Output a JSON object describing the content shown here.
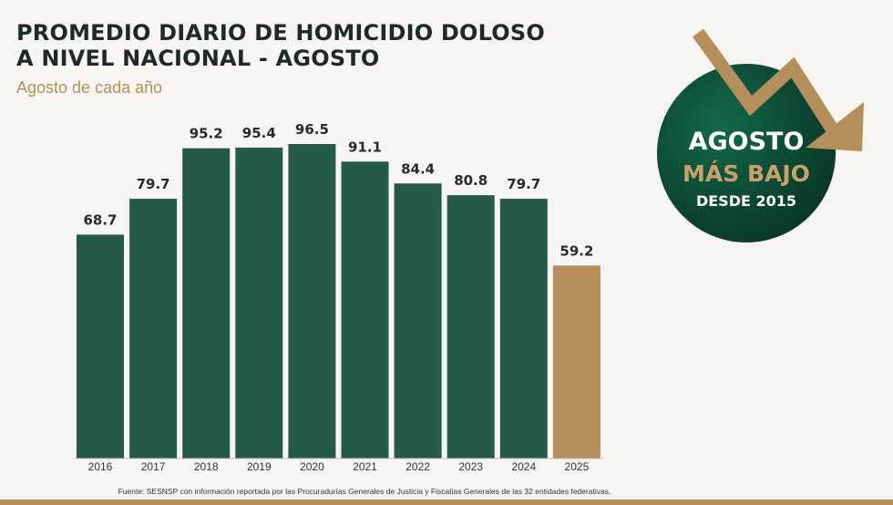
{
  "header": {
    "title_line1": "PROMEDIO DIARIO DE HOMICIDIO DOLOSO",
    "title_line2": "A NIVEL NACIONAL - AGOSTO",
    "subtitle": "Agosto de cada año"
  },
  "chart_data": {
    "type": "bar",
    "title": "PROMEDIO DIARIO DE HOMICIDIO DOLOSO A NIVEL NACIONAL - AGOSTO",
    "subtitle": "Agosto de cada año",
    "categories": [
      "2016",
      "2017",
      "2018",
      "2019",
      "2020",
      "2021",
      "2022",
      "2023",
      "2024",
      "2025"
    ],
    "values": [
      68.7,
      79.7,
      95.2,
      95.4,
      96.5,
      91.1,
      84.4,
      80.8,
      79.7,
      59.2
    ],
    "value_labels": [
      "68.7",
      "79.7",
      "95.2",
      "95.4",
      "96.5",
      "91.1",
      "84.4",
      "80.8",
      "79.7",
      "59.2"
    ],
    "colors": [
      "#265a48",
      "#265a48",
      "#265a48",
      "#265a48",
      "#265a48",
      "#265a48",
      "#265a48",
      "#265a48",
      "#265a48",
      "#b48f5c"
    ],
    "xlabel": "",
    "ylabel": "",
    "ylim": [
      0,
      96.5
    ],
    "grid": false,
    "legend": "none"
  },
  "badge": {
    "line1": "AGOSTO",
    "line2": "MÁS BAJO",
    "line3": "DESDE 2015",
    "icon": "down-trend-arrow-icon",
    "circle_color": "#0c4431",
    "arrow_color": "#b48f5c"
  },
  "footer": {
    "source": "Fuente: SESNSP con información reportada por las Procuradurías Generales de Justicia y Fiscalías Generales de las 32 entidades federativas."
  }
}
